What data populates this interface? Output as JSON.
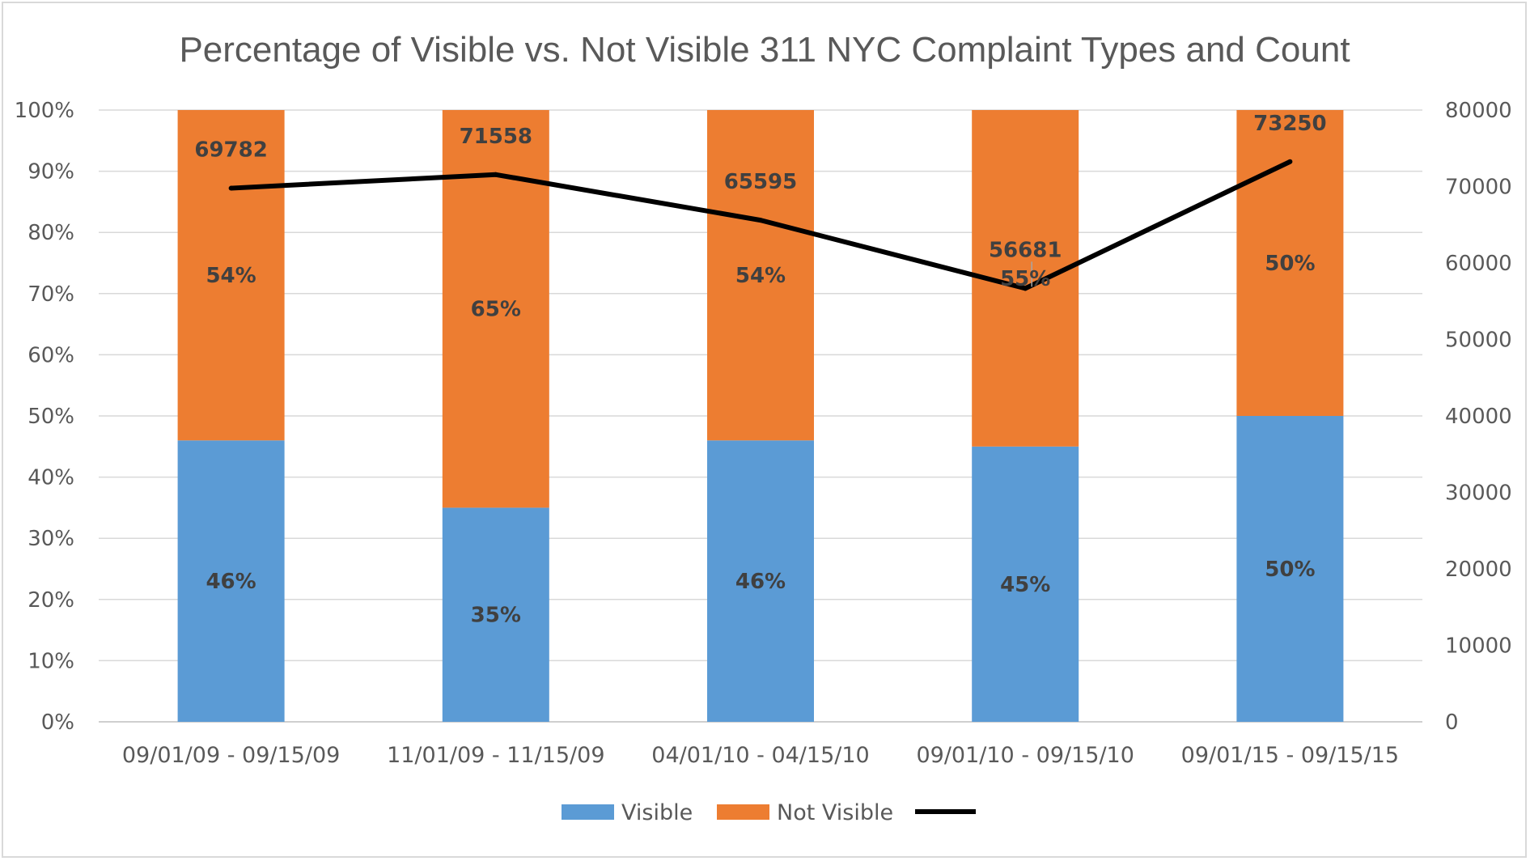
{
  "chart_data": {
    "type": "bar",
    "stacked": true,
    "title": "Percentage of Visible vs. Not Visible 311 NYC Complaint Types and Count",
    "categories": [
      "09/01/09 - 09/15/09",
      "11/01/09 - 11/15/09",
      "04/01/10 - 04/15/10",
      "09/01/10 - 09/15/10",
      "09/01/15 - 09/15/15"
    ],
    "series": [
      {
        "name": "Visible",
        "type": "bar",
        "axis": "left",
        "color": "#5b9bd5",
        "values": [
          46,
          35,
          46,
          45,
          50
        ],
        "labels": [
          "46%",
          "35%",
          "46%",
          "45%",
          "50%"
        ]
      },
      {
        "name": "Not Visible",
        "type": "bar",
        "axis": "left",
        "color": "#ed7d31",
        "values": [
          54,
          65,
          54,
          55,
          50
        ],
        "labels": [
          "54%",
          "65%",
          "54%",
          "55%",
          "50%"
        ]
      },
      {
        "name": "",
        "type": "line",
        "axis": "right",
        "color": "#000000",
        "values": [
          69782,
          71558,
          65595,
          56681,
          73250
        ],
        "labels": [
          "69782",
          "71558",
          "65595",
          "56681",
          "73250"
        ]
      }
    ],
    "y_left": {
      "ylim": [
        0,
        100
      ],
      "ticks": [
        "0%",
        "10%",
        "20%",
        "30%",
        "40%",
        "50%",
        "60%",
        "70%",
        "80%",
        "90%",
        "100%"
      ]
    },
    "y_right": {
      "ylim": [
        0,
        80000
      ],
      "ticks": [
        "0",
        "10000",
        "20000",
        "30000",
        "40000",
        "50000",
        "60000",
        "70000",
        "80000"
      ]
    },
    "grid": true,
    "legend_position": "bottom"
  }
}
